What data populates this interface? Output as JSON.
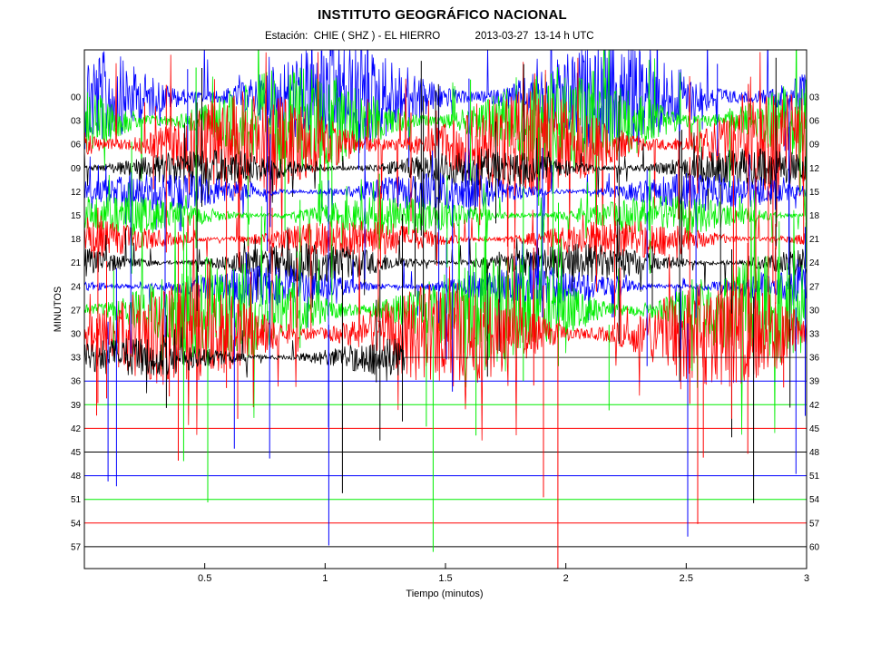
{
  "header": {
    "title": "INSTITUTO GEOGRÁFICO NACIONAL",
    "station_label": "Estación:",
    "station": "CHIE ( SHZ ) - EL HIERRO",
    "datetime": "2013-03-27  13-14 h UTC"
  },
  "chart_data": {
    "type": "line",
    "title": "INSTITUTO GEOGRÁFICO NACIONAL",
    "subtitle": "Estación:  CHIE ( SHZ ) - EL HIERRO          2013-03-27  13-14 h UTC",
    "xlabel": "Tiempo (minutos)",
    "ylabel": "MINUTOS",
    "xlim": [
      0,
      3
    ],
    "x_ticks": [
      "0.5",
      "1",
      "1.5",
      "2",
      "2.5",
      "3"
    ],
    "x_tick_values": [
      0.5,
      1,
      1.5,
      2,
      2.5,
      3
    ],
    "y_ticks_left": [
      "00",
      "03",
      "06",
      "09",
      "12",
      "15",
      "18",
      "21",
      "24",
      "27",
      "30",
      "33",
      "36",
      "39",
      "42",
      "45",
      "48",
      "51",
      "54",
      "57"
    ],
    "y_ticks_right": [
      "03",
      "06",
      "09",
      "12",
      "15",
      "18",
      "21",
      "24",
      "27",
      "30",
      "33",
      "36",
      "39",
      "42",
      "45",
      "48",
      "51",
      "54",
      "57",
      "60"
    ],
    "trace_colors": [
      "#0000ff",
      "#00ee00",
      "#ff0000",
      "#000000"
    ],
    "grid": false,
    "description_note": "helicorder seismogram, 20 traces of 3 minutes each, cycling colors blue, green, red, black",
    "traces": [
      {
        "start_min": 0,
        "end_min": 3,
        "color": "#0000ff",
        "amplitude": "saturated"
      },
      {
        "start_min": 3,
        "end_min": 6,
        "color": "#00ee00",
        "amplitude": "saturated"
      },
      {
        "start_min": 6,
        "end_min": 9,
        "color": "#ff0000",
        "amplitude": "saturated"
      },
      {
        "start_min": 9,
        "end_min": 12,
        "color": "#000000",
        "amplitude": "high"
      },
      {
        "start_min": 12,
        "end_min": 15,
        "color": "#0000ff",
        "amplitude": "high"
      },
      {
        "start_min": 15,
        "end_min": 18,
        "color": "#00ee00",
        "amplitude": "high"
      },
      {
        "start_min": 18,
        "end_min": 21,
        "color": "#ff0000",
        "amplitude": "high"
      },
      {
        "start_min": 21,
        "end_min": 24,
        "color": "#000000",
        "amplitude": "high"
      },
      {
        "start_min": 24,
        "end_min": 27,
        "color": "#0000ff",
        "amplitude": "high"
      },
      {
        "start_min": 27,
        "end_min": 30,
        "color": "#00ee00",
        "amplitude": "saturated"
      },
      {
        "start_min": 30,
        "end_min": 33,
        "color": "#ff0000",
        "amplitude": "saturated"
      },
      {
        "start_min": 33,
        "end_min": 36,
        "color": "#000000",
        "amplitude": "high",
        "data_end_x": 1.33
      },
      {
        "start_min": 36,
        "end_min": 39,
        "color": "#0000ff",
        "amplitude": "none"
      },
      {
        "start_min": 39,
        "end_min": 42,
        "color": "#00ee00",
        "amplitude": "none"
      },
      {
        "start_min": 42,
        "end_min": 45,
        "color": "#ff0000",
        "amplitude": "none"
      },
      {
        "start_min": 45,
        "end_min": 48,
        "color": "#000000",
        "amplitude": "none"
      },
      {
        "start_min": 48,
        "end_min": 51,
        "color": "#0000ff",
        "amplitude": "none"
      },
      {
        "start_min": 51,
        "end_min": 54,
        "color": "#00ee00",
        "amplitude": "none"
      },
      {
        "start_min": 54,
        "end_min": 57,
        "color": "#ff0000",
        "amplitude": "none"
      },
      {
        "start_min": 57,
        "end_min": 60,
        "color": "#000000",
        "amplitude": "none"
      }
    ]
  }
}
